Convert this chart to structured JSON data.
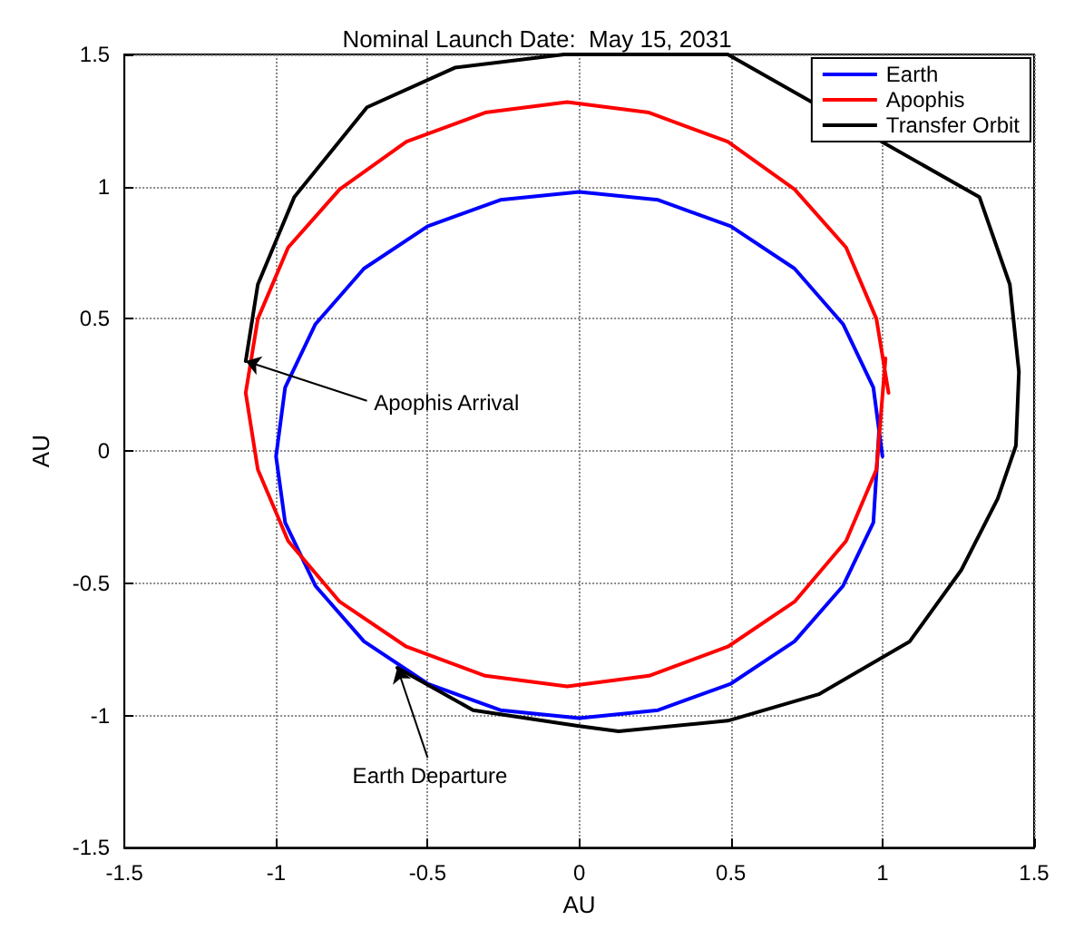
{
  "chart_data": {
    "type": "line",
    "title": "Nominal Launch Date:  May 15, 2031",
    "xlabel": "AU",
    "ylabel": "AU",
    "xlim": [
      -1.5,
      1.5
    ],
    "ylim": [
      -1.5,
      1.5
    ],
    "xticks": [
      -1.5,
      -1,
      -0.5,
      0,
      0.5,
      1,
      1.5
    ],
    "yticks": [
      -1.5,
      -1,
      -0.5,
      0,
      0.5,
      1,
      1.5
    ],
    "grid": true,
    "legend": "top right",
    "marker": "none",
    "line_style": "solid",
    "series": [
      {
        "name": "Earth",
        "color": "#0000ff",
        "x": [
          1.0,
          0.97,
          0.87,
          0.71,
          0.5,
          0.26,
          0,
          -0.26,
          -0.5,
          -0.71,
          -0.87,
          -0.97,
          -1.0,
          -0.97,
          -0.87,
          -0.71,
          -0.5,
          -0.26,
          0,
          0.26,
          0.5,
          0.71,
          0.87,
          0.97,
          0.99
        ],
        "values": [
          -0.02,
          0.24,
          0.48,
          0.69,
          0.85,
          0.95,
          0.98,
          0.95,
          0.85,
          0.69,
          0.48,
          0.24,
          -0.02,
          -0.27,
          -0.51,
          -0.72,
          -0.88,
          -0.98,
          -1.01,
          -0.98,
          -0.88,
          -0.72,
          -0.51,
          -0.27,
          0.1
        ]
      },
      {
        "name": "Apophis",
        "color": "#ff0000",
        "x": [
          1.02,
          0.98,
          0.88,
          0.71,
          0.49,
          0.23,
          -0.04,
          -0.31,
          -0.57,
          -0.79,
          -0.96,
          -1.06,
          -1.1,
          -1.06,
          -0.96,
          -0.79,
          -0.57,
          -0.31,
          -0.04,
          0.23,
          0.49,
          0.71,
          0.88,
          0.98,
          1.01
        ],
        "values": [
          0.22,
          0.5,
          0.77,
          0.99,
          1.17,
          1.28,
          1.32,
          1.28,
          1.17,
          0.99,
          0.77,
          0.5,
          0.22,
          -0.07,
          -0.34,
          -0.57,
          -0.74,
          -0.85,
          -0.89,
          -0.85,
          -0.74,
          -0.57,
          -0.34,
          -0.07,
          0.35
        ]
      },
      {
        "name": "Transfer Orbit",
        "color": "#000000",
        "x": [
          -0.6,
          -0.35,
          0,
          0.13,
          0.49,
          0.79,
          1.09,
          1.26,
          1.38,
          1.44,
          1.45,
          1.42,
          1.32,
          1.09,
          0.91,
          0.49,
          0.2,
          -0.05,
          -0.41,
          -0.7,
          -0.94,
          -1.06,
          -1.1
        ],
        "values": [
          -0.82,
          -0.98,
          -1.04,
          -1.06,
          -1.02,
          -0.92,
          -0.72,
          -0.45,
          -0.18,
          0.02,
          0.3,
          0.63,
          0.96,
          null,
          null,
          1.5,
          1.5,
          1.5,
          1.45,
          1.3,
          0.96,
          0.63,
          0.34
        ]
      }
    ],
    "annotations": [
      {
        "text": "Apophis Arrival",
        "x": -1.1,
        "y": 0.34
      },
      {
        "text": "Earth Departure",
        "x": -0.6,
        "y": -0.82
      }
    ]
  }
}
